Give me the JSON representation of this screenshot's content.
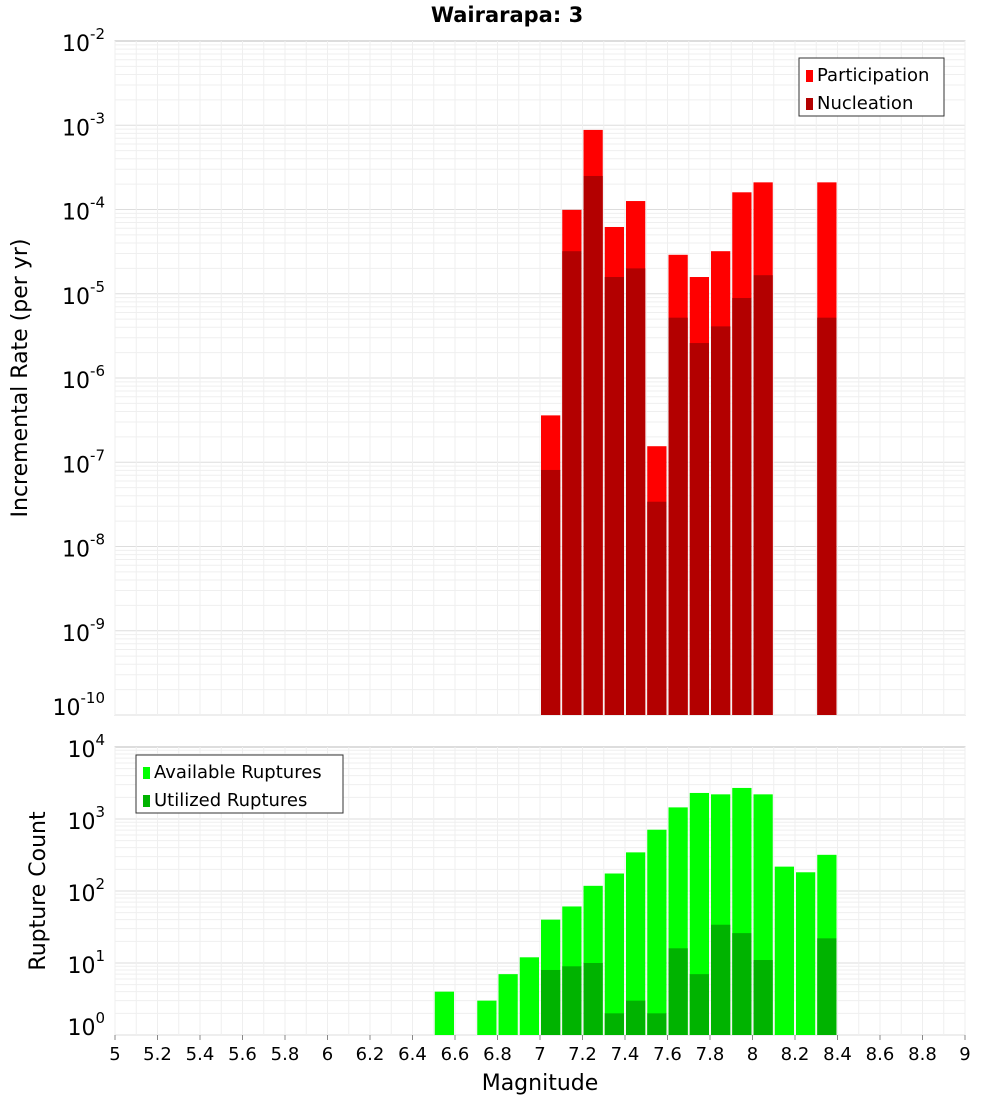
{
  "chart_data": [
    {
      "type": "bar",
      "title": "Wairarapa: 3",
      "xlabel": "Magnitude",
      "ylabel": "Incremental Rate (per yr)",
      "yscale": "log",
      "ylim": [
        1e-10,
        0.01
      ],
      "xlim": [
        5,
        9
      ],
      "grid": true,
      "legend_position": "top-right",
      "x": [
        7.05,
        7.15,
        7.25,
        7.35,
        7.45,
        7.55,
        7.65,
        7.75,
        7.85,
        7.95,
        8.05,
        8.35
      ],
      "series": [
        {
          "name": "Participation",
          "color": "#ff0000",
          "values": [
            3.6e-07,
            9.9e-05,
            0.00088,
            6.2e-05,
            0.000126,
            1.55e-07,
            2.9e-05,
            1.58e-05,
            3.2e-05,
            0.00016,
            0.00021,
            0.00021
          ]
        },
        {
          "name": "Nucleation",
          "color": "#b30000",
          "values": [
            8.1e-08,
            3.2e-05,
            0.00025,
            1.58e-05,
            2e-05,
            3.4e-08,
            5.2e-06,
            2.6e-06,
            4.1e-06,
            8.9e-06,
            1.66e-05,
            5.2e-06
          ]
        }
      ],
      "ytick_exponents": [
        "-2",
        "-3",
        "-4",
        "-5",
        "-6",
        "-7",
        "-8",
        "-9",
        "-10"
      ]
    },
    {
      "type": "bar",
      "xlabel": "Magnitude",
      "ylabel": "Rupture Count",
      "yscale": "log",
      "ylim": [
        1,
        10000.0
      ],
      "xlim": [
        5,
        9
      ],
      "grid": true,
      "legend_position": "top-left",
      "series": [
        {
          "name": "Available Ruptures",
          "color": "#00ff00",
          "x": [
            6.55,
            6.75,
            6.85,
            6.95,
            7.05,
            7.15,
            7.25,
            7.35,
            7.45,
            7.55,
            7.65,
            7.75,
            7.85,
            7.95,
            8.05,
            8.15,
            8.25,
            8.35,
            8.45
          ],
          "values": [
            4,
            3,
            7,
            12,
            40,
            61,
            118,
            175,
            344,
            710,
            1450,
            2300,
            2200,
            2700,
            2200,
            218,
            182,
            318,
            1
          ]
        },
        {
          "name": "Utilized Ruptures",
          "color": "#00b300",
          "x": [
            7.05,
            7.15,
            7.25,
            7.35,
            7.45,
            7.55,
            7.65,
            7.75,
            7.85,
            7.95,
            8.05,
            8.35
          ],
          "values": [
            8,
            9,
            10,
            2,
            3,
            2,
            16,
            7,
            34,
            26,
            11,
            22
          ]
        }
      ],
      "ytick_exponents": [
        "4",
        "3",
        "2",
        "1",
        "0"
      ],
      "xticks": [
        "5",
        "5.2",
        "5.4",
        "5.6",
        "5.8",
        "6",
        "6.2",
        "6.4",
        "6.6",
        "6.8",
        "7",
        "7.2",
        "7.4",
        "7.6",
        "7.8",
        "8",
        "8.2",
        "8.4",
        "8.6",
        "8.8",
        "9"
      ]
    }
  ]
}
